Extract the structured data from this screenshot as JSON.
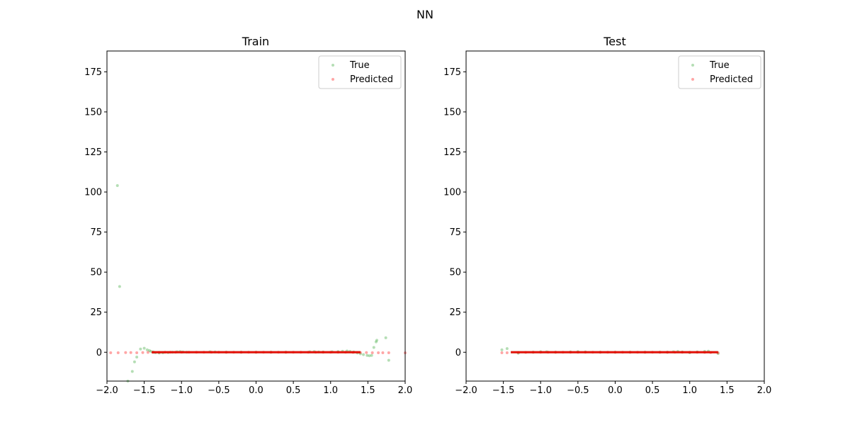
{
  "figure": {
    "suptitle": "NN"
  },
  "colors": {
    "true": "#2ca02c",
    "predicted": "#ff0000",
    "axis": "#000000"
  },
  "chart_data": [
    {
      "type": "scatter",
      "title": "Train",
      "xlim": [
        -2.0,
        2.0
      ],
      "ylim": [
        -18,
        188
      ],
      "xticks": [
        -2.0,
        -1.5,
        -1.0,
        -0.5,
        0.0,
        0.5,
        1.0,
        1.5,
        2.0
      ],
      "xtick_labels": [
        "−2.0",
        "−1.5",
        "−1.0",
        "−0.5",
        "0.0",
        "0.5",
        "1.0",
        "1.5",
        "2.0"
      ],
      "yticks": [
        0,
        25,
        50,
        75,
        100,
        125,
        150,
        175
      ],
      "ytick_labels": [
        "0",
        "25",
        "50",
        "75",
        "100",
        "125",
        "150",
        "175"
      ],
      "legend": {
        "placement": "top-right",
        "entries": [
          "True",
          "Predicted"
        ]
      },
      "series": [
        {
          "name": "True",
          "x": [
            -1.86,
            -1.83,
            -1.72,
            -1.66,
            -1.63,
            -1.6,
            -1.55,
            -1.5,
            -1.46,
            -1.43,
            -1.41,
            -1.38,
            -1.35,
            -1.3,
            -1.25,
            -1.18,
            -1.12,
            -1.06,
            -1.02,
            -0.98,
            -0.93,
            -0.62,
            -0.55,
            -0.4,
            -0.2,
            0.0,
            0.2,
            0.4,
            0.72,
            0.78,
            0.84,
            0.9,
            1.02,
            1.1,
            1.16,
            1.22,
            1.26,
            1.31,
            1.36,
            1.4,
            1.44,
            1.49,
            1.52,
            1.55,
            1.58,
            1.61,
            1.62,
            1.74,
            1.78
          ],
          "y": [
            104,
            41,
            -18,
            -12,
            -6,
            -3,
            2,
            2.5,
            1.5,
            1,
            0.5,
            0.2,
            -0.3,
            -0.5,
            -0.4,
            -0.2,
            0,
            0.3,
            0.4,
            0.2,
            0,
            0.3,
            0.2,
            0,
            0,
            0,
            0,
            0,
            0.3,
            0.4,
            0.2,
            0.1,
            0.3,
            0.4,
            0.6,
            0.8,
            0.5,
            0.2,
            -0.5,
            -1,
            -1.5,
            -2,
            -2.2,
            -2,
            3,
            6.5,
            7.5,
            9,
            -5
          ]
        },
        {
          "name": "Predicted",
          "x": [
            -1.95,
            -1.85,
            -1.75,
            -1.68,
            -1.6,
            -1.52,
            -1.45,
            -1.38,
            -1.3,
            -1.22,
            -1.15,
            -1.08,
            -1.0,
            -0.9,
            -0.8,
            -0.7,
            -0.6,
            -0.5,
            -0.4,
            -0.3,
            -0.2,
            -0.1,
            0.0,
            0.1,
            0.2,
            0.3,
            0.4,
            0.5,
            0.6,
            0.7,
            0.8,
            0.9,
            1.0,
            1.1,
            1.2,
            1.3,
            1.4,
            1.48,
            1.56,
            1.64,
            1.7,
            1.78,
            2.0
          ],
          "y": [
            -0.3,
            -0.3,
            -0.2,
            -0.2,
            -0.3,
            -0.2,
            -0.1,
            -0.1,
            -0.1,
            0,
            0,
            0,
            0,
            0,
            0,
            0,
            0,
            0,
            0,
            0,
            0,
            0,
            0,
            0,
            0,
            0,
            0,
            0,
            0,
            0,
            0,
            0,
            0,
            0,
            0,
            -0.1,
            -0.2,
            -0.2,
            -0.3,
            -0.3,
            -0.3,
            -0.3,
            -0.4
          ]
        }
      ]
    },
    {
      "type": "scatter",
      "title": "Test",
      "xlim": [
        -2.0,
        2.0
      ],
      "ylim": [
        -18,
        188
      ],
      "xticks": [
        -2.0,
        -1.5,
        -1.0,
        -0.5,
        0.0,
        0.5,
        1.0,
        1.5,
        2.0
      ],
      "xtick_labels": [
        "−2.0",
        "−1.5",
        "−1.0",
        "−0.5",
        "0.0",
        "0.5",
        "1.0",
        "1.5",
        "2.0"
      ],
      "yticks": [
        0,
        25,
        50,
        75,
        100,
        125,
        150,
        175
      ],
      "ytick_labels": [
        "0",
        "25",
        "50",
        "75",
        "100",
        "125",
        "150",
        "175"
      ],
      "legend": {
        "placement": "top-right",
        "entries": [
          "True",
          "Predicted"
        ]
      },
      "series": [
        {
          "name": "True",
          "x": [
            -1.52,
            -1.45,
            -1.3,
            -1.1,
            -1.0,
            -0.92,
            -0.8,
            -0.6,
            -0.5,
            -0.4,
            -0.2,
            0.0,
            0.2,
            0.4,
            0.6,
            0.7,
            0.78,
            0.84,
            0.9,
            1.0,
            1.1,
            1.2,
            1.25,
            1.38
          ],
          "y": [
            1.5,
            2.3,
            -0.6,
            0,
            0.3,
            0.3,
            0,
            0.2,
            0.4,
            0.2,
            0,
            0,
            0,
            0,
            0,
            0,
            0.3,
            0.5,
            0.1,
            -0.3,
            0.2,
            0.5,
            0.7,
            -0.8
          ]
        },
        {
          "name": "Predicted",
          "x": [
            -1.52,
            -1.45,
            -1.3,
            -1.2,
            -1.1,
            -1.0,
            -0.9,
            -0.8,
            -0.7,
            -0.6,
            -0.5,
            -0.4,
            -0.3,
            -0.2,
            -0.1,
            0.0,
            0.1,
            0.2,
            0.3,
            0.4,
            0.5,
            0.6,
            0.7,
            0.8,
            0.9,
            1.0,
            1.1,
            1.2,
            1.28,
            1.38
          ],
          "y": [
            -0.3,
            -0.3,
            -0.2,
            -0.1,
            0,
            0,
            0,
            0,
            0,
            0,
            0,
            0,
            0,
            0,
            0,
            0,
            0,
            0,
            0,
            0,
            0,
            0,
            0,
            0,
            0,
            0,
            0,
            -0.1,
            -0.2,
            -0.3
          ]
        }
      ]
    }
  ]
}
